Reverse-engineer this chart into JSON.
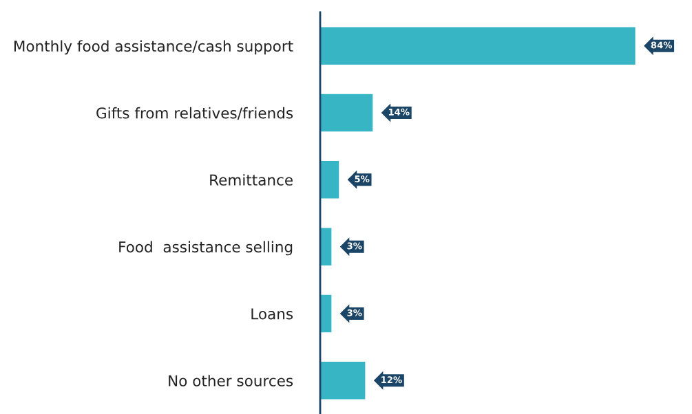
{
  "chart_data": {
    "type": "bar",
    "orientation": "horizontal",
    "categories": [
      "Monthly food assistance/cash support",
      "Gifts from relatives/friends",
      "Remittance",
      "Food  assistance selling",
      "Loans",
      "No other sources"
    ],
    "values": [
      84,
      14,
      5,
      3,
      3,
      12
    ],
    "value_labels": [
      "84%",
      "14%",
      "5%",
      "3%",
      "3%",
      "12%"
    ],
    "color": "#38b5c5",
    "grid": false,
    "legend": false,
    "tick_labels": "y"
  }
}
